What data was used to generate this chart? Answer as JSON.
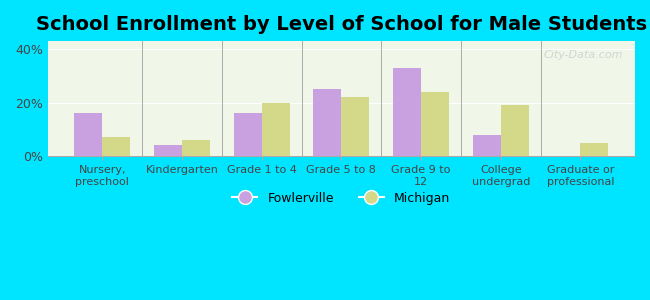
{
  "title": "School Enrollment by Level of School for Male Students",
  "categories": [
    "Nursery,\npreschool",
    "Kindergarten",
    "Grade 1 to 4",
    "Grade 5 to 8",
    "Grade 9 to\n12",
    "College\nundergrad",
    "Graduate or\nprofessional"
  ],
  "fowlerville": [
    16,
    4,
    16,
    25,
    33,
    8,
    0
  ],
  "michigan": [
    7,
    6,
    20,
    22,
    24,
    19,
    5
  ],
  "fowlerville_color": "#c9a0e0",
  "michigan_color": "#d4d98a",
  "background_outer": "#00e5ff",
  "background_inner": "#f0f7e8",
  "title_fontsize": 14,
  "ylabel_ticks": [
    "0%",
    "20%",
    "40%"
  ],
  "yticks": [
    0,
    20,
    40
  ],
  "ylim": [
    0,
    43
  ],
  "legend_labels": [
    "Fowlerville",
    "Michigan"
  ],
  "watermark": "City-Data.com"
}
